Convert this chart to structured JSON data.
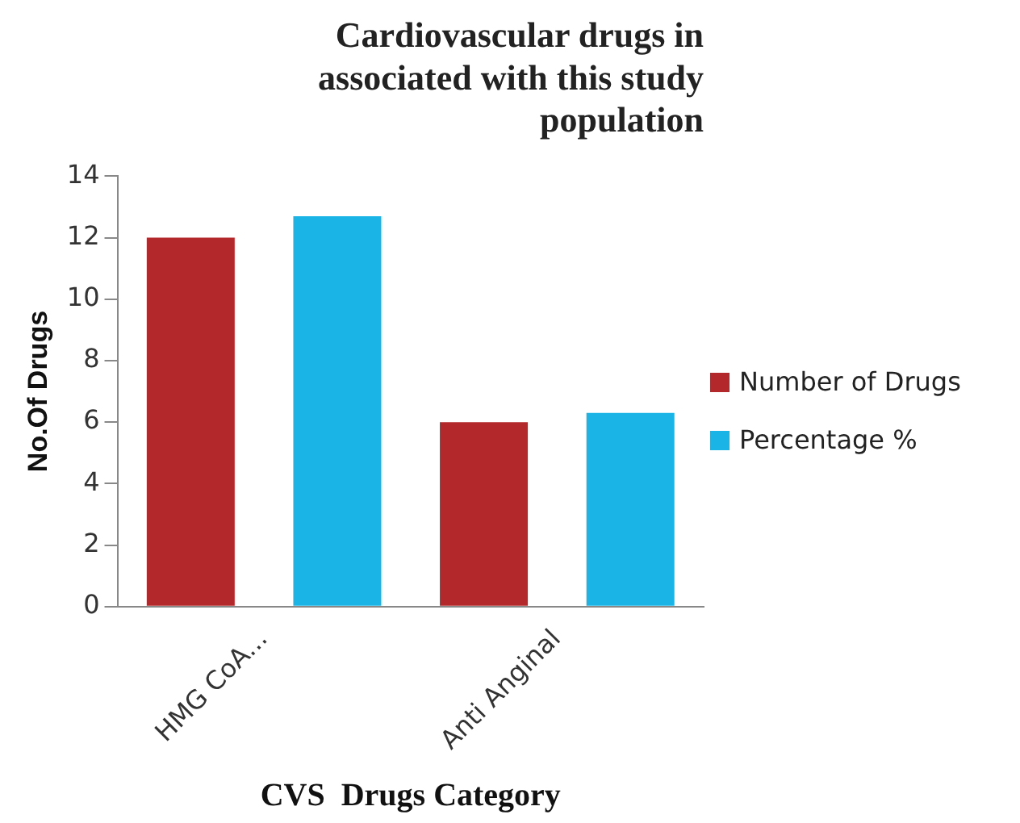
{
  "chart_data": {
    "type": "bar",
    "title": "Cardiovascular drugs in\nassociated with this study\npopulation",
    "xlabel": "CVS  Drugs Category",
    "ylabel": "No.Of Drugs",
    "categories": [
      "HMG CoA...",
      "Anti Anginal"
    ],
    "series": [
      {
        "name": "Number of Drugs",
        "color": "#b3282a",
        "values": [
          12,
          6
        ]
      },
      {
        "name": "Percentage %",
        "color": "#1ab4e6",
        "values": [
          12.7,
          6.3
        ]
      }
    ],
    "ylim": [
      0,
      14
    ],
    "yticks": [
      0,
      2,
      4,
      6,
      8,
      10,
      12,
      14
    ],
    "grid": false,
    "legend": "right"
  }
}
